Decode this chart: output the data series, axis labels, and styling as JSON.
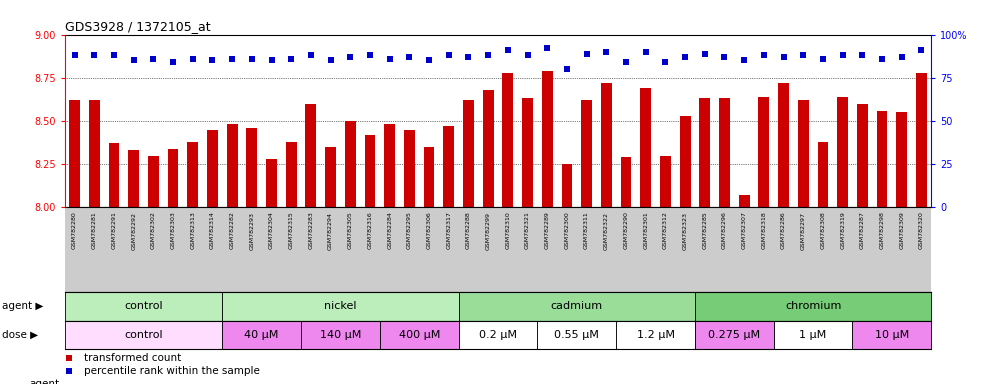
{
  "title": "GDS3928 / 1372105_at",
  "samples": [
    "GSM782280",
    "GSM782281",
    "GSM782291",
    "GSM782292",
    "GSM782302",
    "GSM782303",
    "GSM782313",
    "GSM782314",
    "GSM782282",
    "GSM782293",
    "GSM782304",
    "GSM782315",
    "GSM782283",
    "GSM782294",
    "GSM782305",
    "GSM782316",
    "GSM782284",
    "GSM782295",
    "GSM782306",
    "GSM782317",
    "GSM782288",
    "GSM782299",
    "GSM782310",
    "GSM782321",
    "GSM782289",
    "GSM782300",
    "GSM782311",
    "GSM782322",
    "GSM782290",
    "GSM782301",
    "GSM782312",
    "GSM782323",
    "GSM782285",
    "GSM782296",
    "GSM782307",
    "GSM782318",
    "GSM782286",
    "GSM782297",
    "GSM782308",
    "GSM782319",
    "GSM782287",
    "GSM782298",
    "GSM782309",
    "GSM782320"
  ],
  "bar_values": [
    8.62,
    8.62,
    8.37,
    8.33,
    8.3,
    8.34,
    8.38,
    8.45,
    8.48,
    8.46,
    8.28,
    8.38,
    8.6,
    8.35,
    8.5,
    8.42,
    8.48,
    8.45,
    8.35,
    8.47,
    8.62,
    8.68,
    8.78,
    8.63,
    8.79,
    8.25,
    8.62,
    8.72,
    8.29,
    8.69,
    8.3,
    8.53,
    8.63,
    8.63,
    8.07,
    8.64,
    8.72,
    8.62,
    8.38,
    8.64,
    8.6,
    8.56,
    8.55,
    8.78
  ],
  "percentile_values": [
    88,
    88,
    88,
    85,
    86,
    84,
    86,
    85,
    86,
    86,
    85,
    86,
    88,
    85,
    87,
    88,
    86,
    87,
    85,
    88,
    87,
    88,
    91,
    88,
    92,
    80,
    89,
    90,
    84,
    90,
    84,
    87,
    89,
    87,
    85,
    88,
    87,
    88,
    86,
    88,
    88,
    86,
    87,
    91
  ],
  "ylim": [
    8.0,
    9.0
  ],
  "yticks": [
    8.0,
    8.25,
    8.5,
    8.75,
    9.0
  ],
  "right_ylim": [
    0,
    100
  ],
  "right_yticks": [
    0,
    25,
    50,
    75,
    100
  ],
  "bar_color": "#cc0000",
  "dot_color": "#0000cc",
  "background_color": "#ffffff",
  "plot_bg": "#ffffff",
  "tick_bg": "#cccccc",
  "agents": [
    {
      "label": "control",
      "start": 0,
      "end": 8,
      "color": "#bbeebb"
    },
    {
      "label": "nickel",
      "start": 8,
      "end": 20,
      "color": "#bbeebb"
    },
    {
      "label": "cadmium",
      "start": 20,
      "end": 32,
      "color": "#99dd99"
    },
    {
      "label": "chromium",
      "start": 32,
      "end": 44,
      "color": "#77cc77"
    }
  ],
  "doses": [
    {
      "label": "control",
      "start": 0,
      "end": 8,
      "color": "#ffddff"
    },
    {
      "label": "40 μM",
      "start": 8,
      "end": 12,
      "color": "#ee88ee"
    },
    {
      "label": "140 μM",
      "start": 12,
      "end": 16,
      "color": "#ee88ee"
    },
    {
      "label": "400 μM",
      "start": 16,
      "end": 20,
      "color": "#ee88ee"
    },
    {
      "label": "0.2 μM",
      "start": 20,
      "end": 24,
      "color": "#ffffff"
    },
    {
      "label": "0.55 μM",
      "start": 24,
      "end": 28,
      "color": "#ffffff"
    },
    {
      "label": "1.2 μM",
      "start": 28,
      "end": 32,
      "color": "#ffffff"
    },
    {
      "label": "0.275 μM",
      "start": 32,
      "end": 36,
      "color": "#ee88ee"
    },
    {
      "label": "1 μM",
      "start": 36,
      "end": 40,
      "color": "#ffffff"
    },
    {
      "label": "10 μM",
      "start": 40,
      "end": 44,
      "color": "#ee88ee"
    }
  ]
}
